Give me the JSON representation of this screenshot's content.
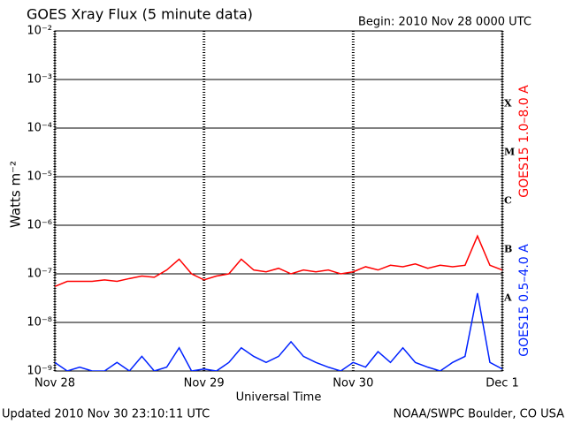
{
  "chart_data": {
    "type": "line",
    "title": "GOES Xray Flux (5 minute data)",
    "subtitle": "Begin:  2010 Nov 28 0000 UTC",
    "xlabel": "Universal Time",
    "ylabel": "Watts m⁻²",
    "footer_left": "Updated 2010 Nov 30 23:10:11 UTC",
    "footer_right": "NOAA/SWPC Boulder, CO USA",
    "log_scale_y": true,
    "grid": true,
    "x": [
      0,
      2,
      4,
      6,
      8,
      10,
      12,
      14,
      16,
      18,
      20,
      22,
      24,
      26,
      28,
      30,
      32,
      34,
      36,
      38,
      40,
      42,
      44,
      46,
      48,
      50,
      52,
      54,
      56,
      58,
      60,
      62,
      64,
      66,
      68,
      70,
      72
    ],
    "xlim": [
      0,
      72
    ],
    "xticks": [
      {
        "value": 0,
        "label": "Nov 28"
      },
      {
        "value": 24,
        "label": "Nov 29"
      },
      {
        "value": 48,
        "label": "Nov 30"
      },
      {
        "value": 72,
        "label": "Dec 1"
      }
    ],
    "ylim": [
      1e-09,
      0.01
    ],
    "yticks": [
      {
        "value": 1e-09,
        "label": "10⁻⁹"
      },
      {
        "value": 1e-08,
        "label": "10⁻⁸"
      },
      {
        "value": 1e-07,
        "label": "10⁻⁷"
      },
      {
        "value": 1e-06,
        "label": "10⁻⁶"
      },
      {
        "value": 1e-05,
        "label": "10⁻⁵"
      },
      {
        "value": 0.0001,
        "label": "10⁻⁴"
      },
      {
        "value": 0.001,
        "label": "10⁻³"
      },
      {
        "value": 0.01,
        "label": "10⁻²"
      }
    ],
    "class_labels": [
      {
        "value": 0.0001,
        "label": "X"
      },
      {
        "value": 1e-05,
        "label": "M"
      },
      {
        "value": 1e-06,
        "label": "C"
      },
      {
        "value": 1e-07,
        "label": "B"
      },
      {
        "value": 1e-08,
        "label": "A"
      }
    ],
    "series": [
      {
        "name": "GOES15 1.0–8.0 A",
        "color": "#ff0000",
        "values": [
          5.5e-08,
          7e-08,
          7e-08,
          7e-08,
          7.5e-08,
          7e-08,
          8e-08,
          9e-08,
          8.5e-08,
          1.2e-07,
          2e-07,
          1e-07,
          7.5e-08,
          9e-08,
          1e-07,
          2e-07,
          1.2e-07,
          1.1e-07,
          1.3e-07,
          1e-07,
          1.2e-07,
          1.1e-07,
          1.2e-07,
          1e-07,
          1.1e-07,
          1.4e-07,
          1.2e-07,
          1.5e-07,
          1.4e-07,
          1.6e-07,
          1.3e-07,
          1.5e-07,
          1.4e-07,
          1.5e-07,
          6e-07,
          1.5e-07,
          1.2e-07
        ]
      },
      {
        "name": "GOES15 0.5–4.0 A",
        "color": "#0022ff",
        "values": [
          1.5e-09,
          1e-09,
          1.2e-09,
          1e-09,
          1e-09,
          1.5e-09,
          1e-09,
          2e-09,
          1e-09,
          1.2e-09,
          3e-09,
          1e-09,
          1.1e-09,
          1e-09,
          1.5e-09,
          3e-09,
          2e-09,
          1.5e-09,
          2e-09,
          4e-09,
          2e-09,
          1.5e-09,
          1.2e-09,
          1e-09,
          1.5e-09,
          1.2e-09,
          2.5e-09,
          1.5e-09,
          3e-09,
          1.5e-09,
          1.2e-09,
          1e-09,
          1.5e-09,
          2e-09,
          4e-08,
          1.5e-09,
          1.1e-09
        ]
      }
    ]
  }
}
